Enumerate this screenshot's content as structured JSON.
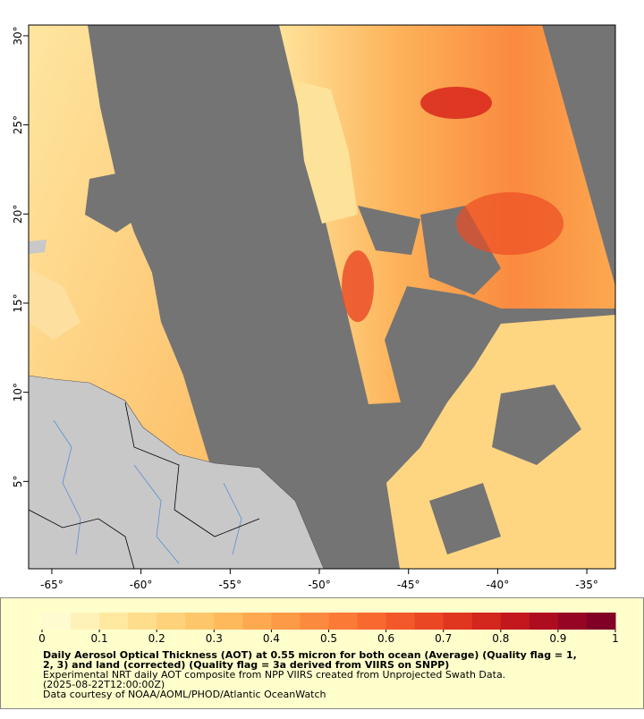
{
  "map": {
    "xlim": [
      -66.3,
      -33.4
    ],
    "ylim": [
      0.1,
      30.6
    ],
    "xticks": [
      {
        "value": -65,
        "label": "-65°"
      },
      {
        "value": -60,
        "label": "-60°"
      },
      {
        "value": -55,
        "label": "-55°"
      },
      {
        "value": -50,
        "label": "-50°"
      },
      {
        "value": -45,
        "label": "-45°"
      },
      {
        "value": -40,
        "label": "-40°"
      },
      {
        "value": -35,
        "label": "-35°"
      }
    ],
    "yticks": [
      {
        "value": 5,
        "label": "5°"
      },
      {
        "value": 10,
        "label": "10°"
      },
      {
        "value": 15,
        "label": "15°"
      },
      {
        "value": 20,
        "label": "20°"
      },
      {
        "value": 25,
        "label": "25°"
      },
      {
        "value": 30,
        "label": "30°"
      }
    ]
  },
  "colorbar": {
    "lim": [
      0,
      1
    ],
    "ticks": [
      0,
      0.1,
      0.2,
      0.3,
      0.4,
      0.5,
      0.6,
      0.7,
      0.8,
      0.9,
      1
    ],
    "colors": [
      "#fffbd0",
      "#fff2b8",
      "#ffe8a0",
      "#fedd8c",
      "#fed27a",
      "#fec66a",
      "#feb95c",
      "#fea94f",
      "#fd9a46",
      "#fc8a3e",
      "#fb7a36",
      "#f8692f",
      "#f25829",
      "#ea4724",
      "#e0361f",
      "#d3261c",
      "#c2181d",
      "#ae0d20",
      "#960624",
      "#800026"
    ]
  },
  "caption": {
    "title_lines": [
      "Daily Aerosol Optical Thickness (AOT) at 0.55 micron for both ocean (Average) (Quality flag = 1,",
      "2, 3) and land (corrected) (Quality flag = 3a derived from VIIRS on SNPP)"
    ],
    "lines": [
      "Experimental NRT daily AOT composite from NPP VIIRS created from Unprojected Swath Data.",
      "(2025-08-22T12:00:00Z)",
      "Data courtesy of NOAA/AOML/PHOD/Atlantic OceanWatch"
    ]
  }
}
